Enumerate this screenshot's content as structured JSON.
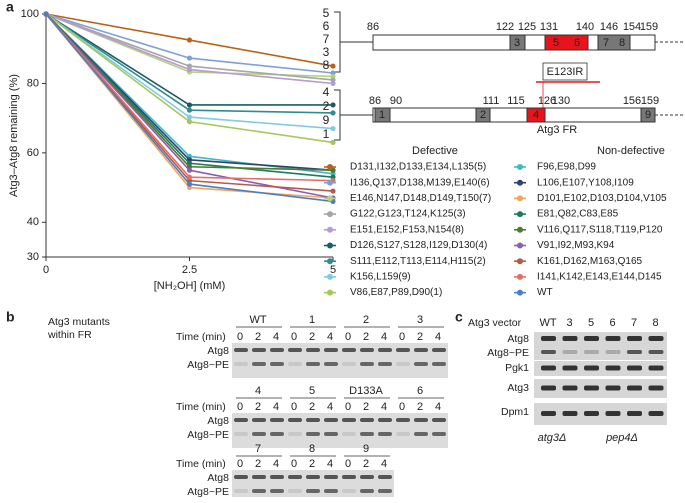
{
  "chart_data": {
    "type": "line",
    "panel_label": "a",
    "y_label": "Atg3–Atg8 remaining (%)",
    "x_label": "[NH₂OH] (mM)",
    "x": [
      0,
      2.5,
      5
    ],
    "xlim": [
      0,
      5
    ],
    "xticks": [
      0,
      2.5,
      5
    ],
    "ylim": [
      30,
      100
    ],
    "yticks": [
      30,
      40,
      60,
      80,
      100
    ],
    "legend_groups": [
      "Defective",
      "Non-defective"
    ],
    "series": [
      {
        "name": "D131,I132,D133,E134,L135(5)",
        "group": 0,
        "color": "#b8621b",
        "label_color": "#e32020",
        "values": [
          100,
          92.5,
          85
        ]
      },
      {
        "name": "I136,Q137,D138,M139,E140(6)",
        "group": 0,
        "color": "#7f9fd4",
        "label_color": "#e32020",
        "values": [
          100,
          87.3,
          83
        ]
      },
      {
        "name": "E146,N147,D148,D149,T150(7)",
        "group": 0,
        "color": "#b6d27c",
        "label_color": "#888888",
        "values": [
          100,
          83.3,
          82
        ]
      },
      {
        "name": "G122,G123,T124,K125(3)",
        "group": 0,
        "color": "#a6a6a6",
        "label_color": "#888888",
        "values": [
          100,
          85,
          81
        ]
      },
      {
        "name": "E151,E152,F153,N154(8)",
        "group": 0,
        "color": "#b79bd4",
        "label_color": "#888888",
        "values": [
          100,
          84,
          80
        ]
      },
      {
        "name": "D126,S127,S128,I129,D130(4)",
        "group": 0,
        "color": "#1d5c66",
        "label_color": "#e32020",
        "values": [
          100,
          73.8,
          73.8
        ]
      },
      {
        "name": "S111,E112,T113,E114,H115(2)",
        "group": 0,
        "color": "#2f8c8f",
        "label_color": "#888888",
        "values": [
          100,
          72.3,
          71.5
        ]
      },
      {
        "name": "K156,L159(9)",
        "group": 0,
        "color": "#7fcbe3",
        "label_color": "#888888",
        "values": [
          100,
          70.3,
          67
        ]
      },
      {
        "name": "V86,E87,P89,D90(1)",
        "group": 0,
        "color": "#a6c85a",
        "label_color": "#888888",
        "values": [
          100,
          69,
          63
        ]
      },
      {
        "name": "F96,E98,D99",
        "group": 1,
        "color": "#3fb8c8",
        "label_color": "#333333",
        "values": [
          100,
          59,
          54
        ]
      },
      {
        "name": "L106,E107,Y108,I109",
        "group": 1,
        "color": "#2c4370",
        "label_color": "#333333",
        "values": [
          100,
          58,
          55
        ]
      },
      {
        "name": "D101,E102,D103,D104,V105",
        "group": 1,
        "color": "#f2a65a",
        "label_color": "#333333",
        "values": [
          100,
          50,
          47
        ]
      },
      {
        "name": "E81,Q82,C83,E85",
        "group": 1,
        "color": "#1f7a58",
        "label_color": "#333333",
        "values": [
          100,
          57,
          53
        ]
      },
      {
        "name": "V116,Q117,S118,T119,P120",
        "group": 1,
        "color": "#4f7a2c",
        "label_color": "#333333",
        "values": [
          100,
          56,
          55
        ]
      },
      {
        "name": "V91,I92,M93,K94",
        "group": 1,
        "color": "#8b5fb4",
        "label_color": "#333333",
        "values": [
          100,
          55,
          47
        ]
      },
      {
        "name": "K161,D162,M163,Q165",
        "group": 1,
        "color": "#b55a4a",
        "label_color": "#333333",
        "values": [
          100,
          52,
          49
        ]
      },
      {
        "name": "I141,K142,E143,E144,D145",
        "group": 1,
        "color": "#e36f66",
        "label_color": "#333333",
        "values": [
          100,
          53,
          52
        ]
      },
      {
        "name": "WT",
        "group": 1,
        "color": "#4c7fc2",
        "label_color": "#333333",
        "values": [
          100,
          51,
          46
        ]
      }
    ],
    "side_labels": [
      [
        {
          "text": "5",
          "color": "#e32020"
        },
        {
          "text": "6",
          "color": "#e32020"
        },
        {
          "text": "7",
          "color": "#888888"
        },
        {
          "text": "3",
          "color": "#888888"
        },
        {
          "text": "8",
          "color": "#888888"
        }
      ],
      [
        {
          "text": "4",
          "color": "#e32020"
        },
        {
          "text": "2",
          "color": "#888888"
        },
        {
          "text": "9",
          "color": "#888888"
        },
        {
          "text": "1",
          "color": "#888888"
        }
      ]
    ]
  },
  "diagram": {
    "top": {
      "positions": [
        86,
        122,
        125,
        131,
        140,
        146,
        154,
        159
      ],
      "domains": [
        "3",
        "5",
        "6",
        "7",
        "8"
      ],
      "mutant": "E123IR"
    },
    "bottom": {
      "positions": [
        86,
        90,
        111,
        115,
        126,
        130,
        156,
        159
      ],
      "domains": [
        "1",
        "2",
        "4",
        "9"
      ],
      "label": "Atg3 FR"
    }
  },
  "panel_b": {
    "label": "b",
    "title_lines": [
      "Atg3 mutants",
      "within FR"
    ],
    "time_label": "Time (min)",
    "times": [
      0,
      2,
      4
    ],
    "bands": [
      "Atg8",
      "Atg8~PE"
    ],
    "rows": [
      [
        "WT",
        "1",
        "2",
        "3"
      ],
      [
        "4",
        "5",
        "D133A",
        "6"
      ],
      [
        "7",
        "8",
        "9"
      ]
    ]
  },
  "panel_c": {
    "label": "c",
    "title": "Atg3 vector",
    "lanes": [
      "WT",
      "3",
      "5",
      "6",
      "7",
      "8"
    ],
    "rows": [
      "Atg8",
      "Atg8~PE",
      "Pgk1",
      "Atg3",
      "Dpm1"
    ],
    "strains": [
      "atg3Δ",
      "pep4Δ"
    ]
  }
}
